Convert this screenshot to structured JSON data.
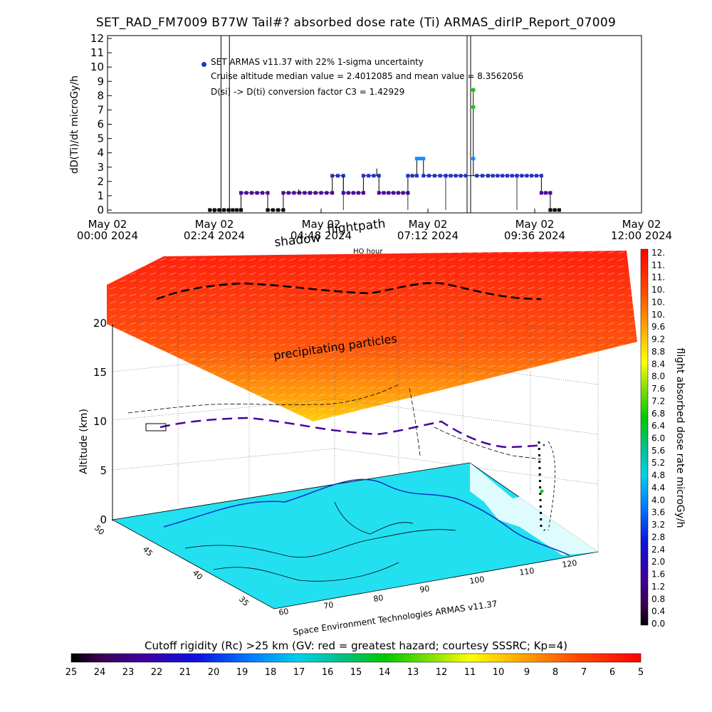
{
  "title": "SET_RAD_FM7009  B77W Tail#? absorbed dose rate (Ti) ARMAS_dirIP_Report_07009",
  "top_plot": {
    "notes": [
      "SET ARMAS v11.37 with 22% 1-sigma uncertainty",
      "Cruise altitude median value = 2.4012085 and mean value = 8.3562056",
      "D(si) -> D(ti) conversion factor C3 = 1.42929"
    ],
    "shadow_label": "shadow",
    "flightpath_label": "flightpath",
    "ho_label": "HO hour"
  },
  "scene": {
    "precip_label": "precipitating particles",
    "credit": "Space Environment Technologies ARMAS v11.37",
    "alt_ticks": [
      "0",
      "5",
      "10",
      "15",
      "20"
    ],
    "lat_ticks": [
      "50",
      "45",
      "40",
      "35"
    ],
    "lon_ticks": [
      "60",
      "70",
      "80",
      "90",
      "100",
      "110",
      "120"
    ],
    "ocean_color": "#22e0f0"
  },
  "colorbar_right": {
    "label": "flight absorbed dose rate microGy/h",
    "ticks": [
      "12.",
      "11.",
      "11.",
      "10.",
      "10.",
      "10.",
      "9.6",
      "9.2",
      "8.8",
      "8.4",
      "8.0",
      "7.6",
      "7.2",
      "6.8",
      "6.4",
      "6.0",
      "5.6",
      "5.2",
      "4.8",
      "4.4",
      "4.0",
      "3.6",
      "3.2",
      "2.8",
      "2.4",
      "2.0",
      "1.6",
      "1.2",
      "0.8",
      "0.4",
      "0.0"
    ]
  },
  "colorbar_bottom": {
    "label": "Cutoff rigidity (Rc) >25 km (GV: red = greatest hazard; courtesy SSSRC; Kp=4)",
    "ticks": [
      "25",
      "24",
      "23",
      "22",
      "21",
      "20",
      "19",
      "18",
      "17",
      "16",
      "15",
      "14",
      "13",
      "12",
      "11",
      "10",
      "9",
      "8",
      "7",
      "6",
      "5"
    ]
  },
  "chart_data": {
    "type": "scatter",
    "title": "SET_RAD_FM7009  B77W Tail#? absorbed dose rate (Ti) ARMAS_dirIP_Report_07009",
    "xlabel": "",
    "ylabel": "dD(Ti)/dt microGy/h",
    "xlim": [
      0,
      12
    ],
    "ylim": [
      0,
      12
    ],
    "y_ticks": [
      "0",
      "1",
      "2",
      "3",
      "4",
      "5",
      "6",
      "7",
      "8",
      "9",
      "10",
      "11",
      "12"
    ],
    "x_ticks": [
      {
        "value": 0,
        "l1": "May 02",
        "l2": "00:00 2024"
      },
      {
        "value": 2.4,
        "l1": "May 02",
        "l2": "02:24 2024"
      },
      {
        "value": 4.8,
        "l1": "May 02",
        "l2": "04:48 2024"
      },
      {
        "value": 7.2,
        "l1": "May 02",
        "l2": "07:12 2024"
      },
      {
        "value": 9.6,
        "l1": "May 02",
        "l2": "09:36 2024"
      },
      {
        "value": 12.0,
        "l1": "May 02",
        "l2": "12:00 2024"
      }
    ],
    "vertical_lines": [
      2.55,
      2.74,
      8.08,
      8.16
    ],
    "spike": {
      "x": 8.22,
      "values": [
        8.4,
        7.2,
        3.6
      ]
    },
    "series": [
      {
        "segments": [
          {
            "x0": 2.3,
            "x1": 2.72,
            "y": 0
          },
          {
            "x0": 2.72,
            "x1": 3.0,
            "y": 0
          },
          {
            "x0": 3.0,
            "x1": 3.6,
            "y": 1.2
          },
          {
            "x0": 3.6,
            "x1": 3.95,
            "y": 0
          },
          {
            "x0": 3.95,
            "x1": 4.55,
            "y": 1.2
          },
          {
            "x0": 4.55,
            "x1": 5.05,
            "y": 1.2
          },
          {
            "x0": 5.05,
            "x1": 5.3,
            "y": 2.4
          },
          {
            "x0": 5.3,
            "x1": 5.75,
            "y": 1.2
          },
          {
            "x0": 5.75,
            "x1": 6.1,
            "y": 2.4
          },
          {
            "x0": 6.1,
            "x1": 6.75,
            "y": 1.2
          },
          {
            "x0": 6.75,
            "x1": 6.95,
            "y": 2.4
          },
          {
            "x0": 6.95,
            "x1": 7.1,
            "y": 3.6
          },
          {
            "x0": 7.1,
            "x1": 7.6,
            "y": 2.4
          },
          {
            "x0": 7.6,
            "x1": 8.05,
            "y": 2.4
          },
          {
            "x0": 8.3,
            "x1": 8.55,
            "y": 2.4
          },
          {
            "x0": 8.55,
            "x1": 9.2,
            "y": 2.4
          },
          {
            "x0": 9.2,
            "x1": 9.75,
            "y": 2.4
          },
          {
            "x0": 9.75,
            "x1": 9.95,
            "y": 1.2
          },
          {
            "x0": 9.95,
            "x1": 10.15,
            "y": 0
          }
        ]
      }
    ]
  }
}
